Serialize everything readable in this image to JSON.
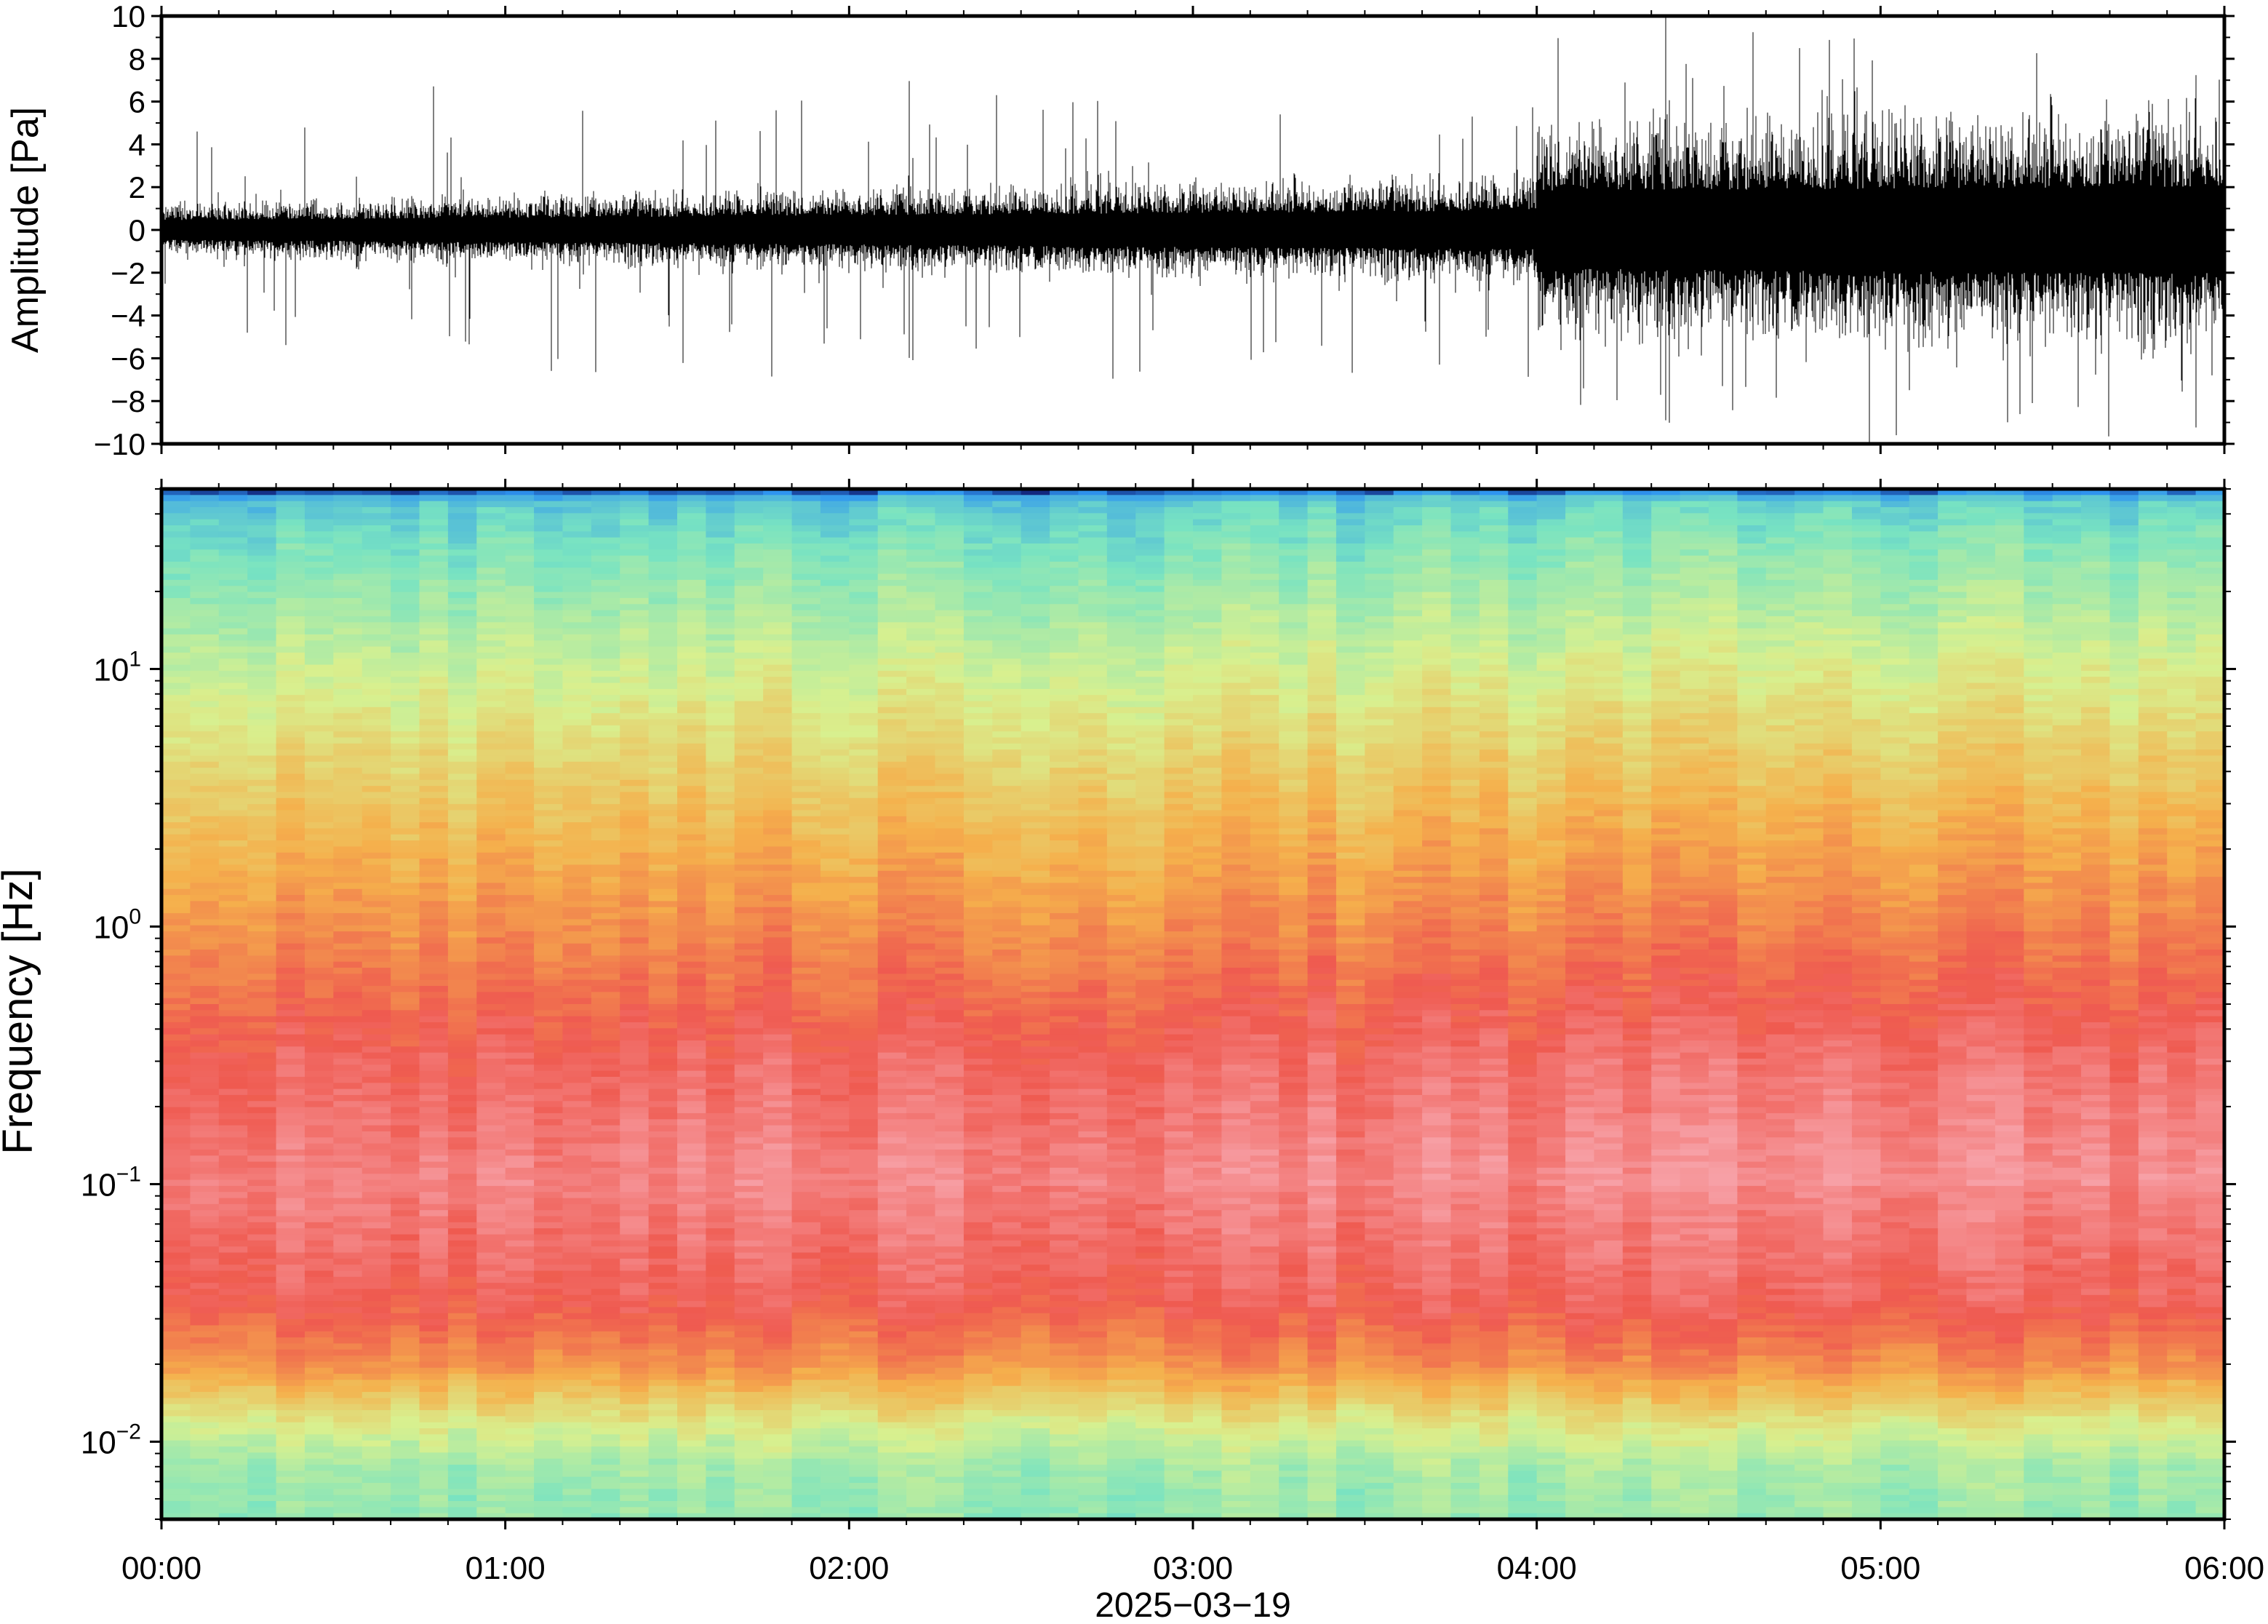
{
  "chart_data": [
    {
      "type": "line",
      "title": "",
      "ylabel": "Amplitude [Pa]",
      "xlabel": "",
      "ylim": [
        -10,
        10
      ],
      "yticks": [
        -10,
        -8,
        -6,
        -4,
        -2,
        0,
        2,
        4,
        6,
        8,
        10
      ],
      "ytick_labels": [
        "−10",
        "−8",
        "−6",
        "−4",
        "−2",
        "0",
        "2",
        "4",
        "6",
        "8",
        "10"
      ],
      "xlim_hours": [
        0,
        6
      ],
      "series": [
        {
          "color": "#000000",
          "envelope_segments": [
            {
              "t_start": "00:00",
              "t_end": "04:00",
              "typical_abs_pa_start": 1.0,
              "typical_abs_pa_end": 2.0,
              "peak_abs_pa": 7.0
            },
            {
              "t_start": "04:00",
              "t_end": "06:00",
              "typical_abs_pa_start": 4.0,
              "typical_abs_pa_end": 4.5,
              "peak_abs_pa": 10.0
            }
          ]
        }
      ]
    },
    {
      "type": "heatmap",
      "title": "",
      "ylabel": "Frequency [Hz]",
      "xlabel": "2025−03−19",
      "y_scale": "log",
      "ylim_hz": [
        0.005,
        50
      ],
      "yticks": [
        0.01,
        0.1,
        1,
        10
      ],
      "ytick_labels": [
        {
          "base": "10",
          "exp": "−2"
        },
        {
          "base": "10",
          "exp": "−1"
        },
        {
          "base": "10",
          "exp": "0"
        },
        {
          "base": "10",
          "exp": "1"
        }
      ],
      "x_categories": [
        "00:00",
        "01:00",
        "02:00",
        "03:00",
        "04:00",
        "05:00",
        "06:00"
      ],
      "colormap": "rainbow_power",
      "colors": {
        "lowest": "#0b0b60",
        "low": "#2f95f0",
        "mid_low": "#78e3c2",
        "mid": "#d8f08f",
        "mid_high": "#f5b04c",
        "high": "#ef5a50",
        "highest": "#f7a0a6"
      },
      "power_profile_by_frequency": [
        {
          "freq_hz": 0.005,
          "level": 0.35
        },
        {
          "freq_hz": 0.008,
          "level": 0.38
        },
        {
          "freq_hz": 0.012,
          "level": 0.5
        },
        {
          "freq_hz": 0.02,
          "level": 0.72
        },
        {
          "freq_hz": 0.035,
          "level": 0.85
        },
        {
          "freq_hz": 0.1,
          "level": 0.93
        },
        {
          "freq_hz": 0.3,
          "level": 0.86
        },
        {
          "freq_hz": 1,
          "level": 0.72
        },
        {
          "freq_hz": 3,
          "level": 0.6
        },
        {
          "freq_hz": 10,
          "level": 0.45
        },
        {
          "freq_hz": 30,
          "level": 0.3
        },
        {
          "freq_hz": 45,
          "level": 0.22
        },
        {
          "freq_hz": 50,
          "level": 0.02
        }
      ]
    }
  ]
}
